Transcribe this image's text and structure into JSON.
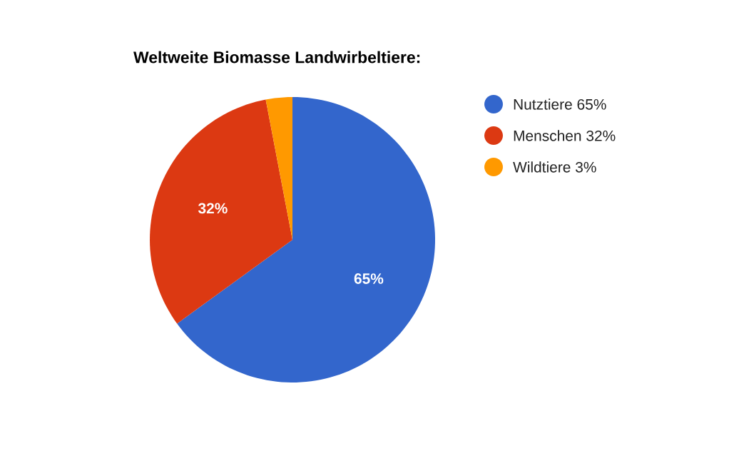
{
  "chart_data": {
    "type": "pie",
    "title": "Weltweite Biomasse Landwirbeltiere:",
    "categories": [
      "Nutztiere 65%",
      "Menschen 32%",
      "Wildtiere 3%"
    ],
    "values": [
      65,
      32,
      3
    ],
    "colors": [
      "#3366cc",
      "#dc3912",
      "#ff9900"
    ],
    "value_labels": [
      "65%",
      "32%",
      null
    ],
    "legend": "right"
  }
}
